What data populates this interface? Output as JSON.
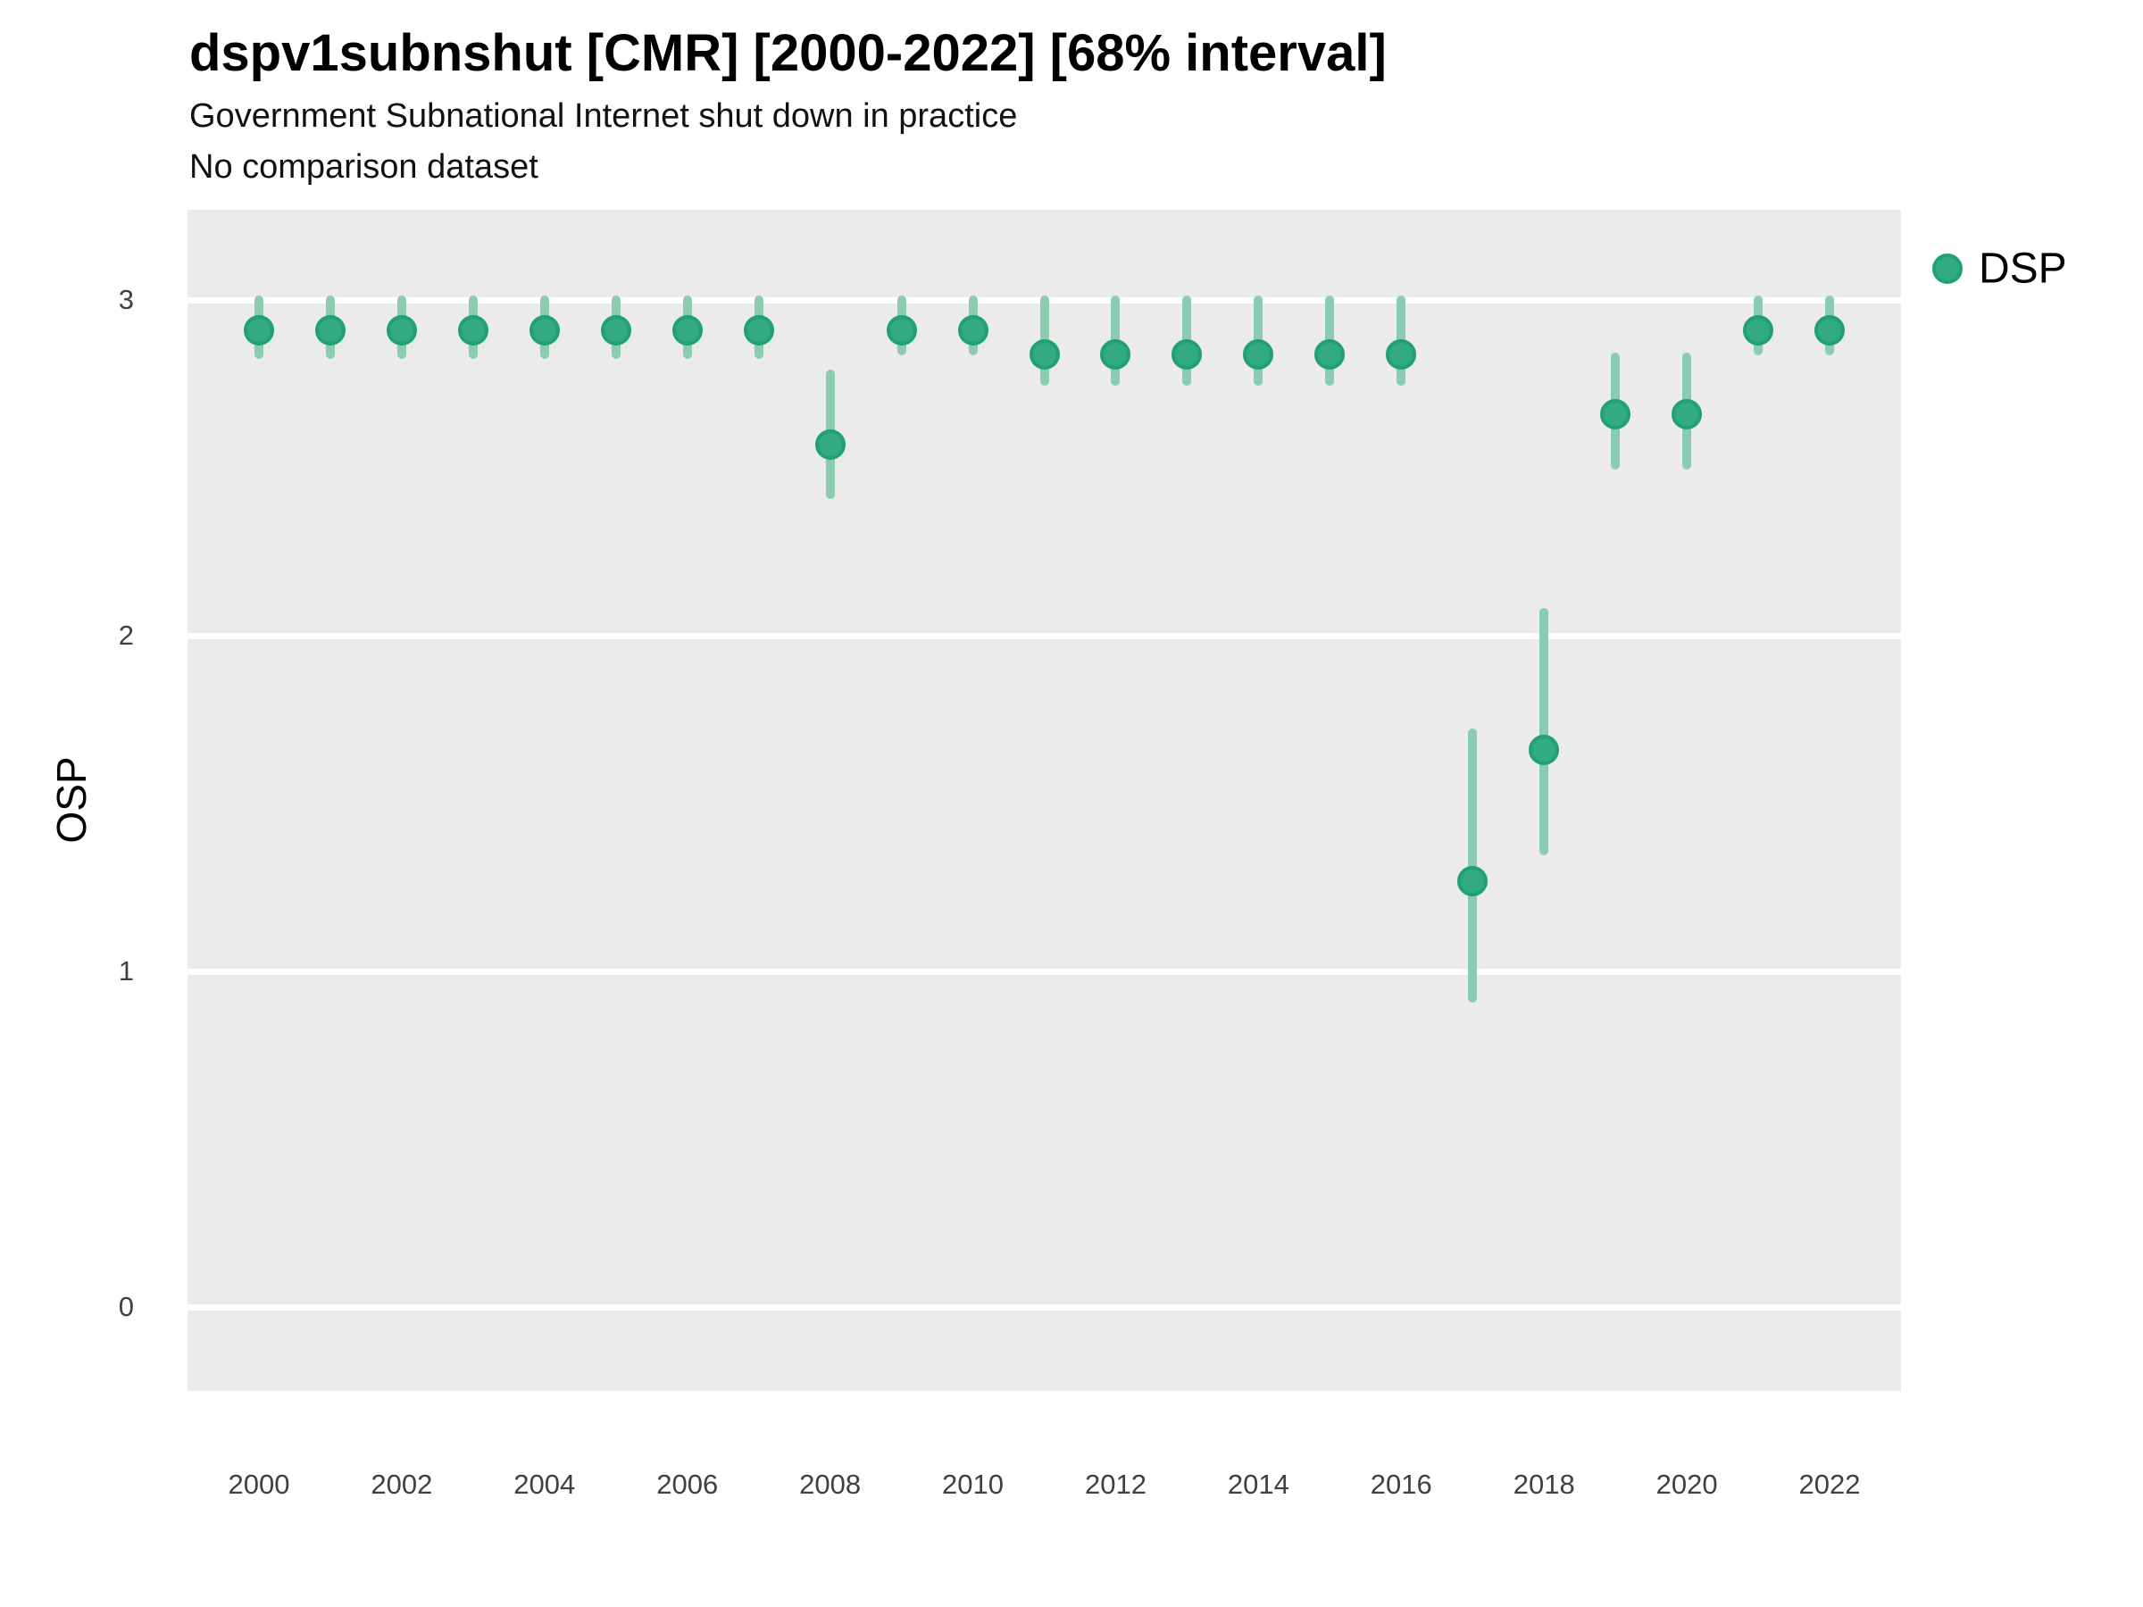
{
  "header": {
    "title": "dspv1subnshut [CMR] [2000-2022] [68% interval]",
    "subtitle": "Government Subnational Internet shut down in practice",
    "note": "No comparison dataset"
  },
  "axes": {
    "y_title": "OSP",
    "y_tick_labels": [
      "3",
      "2",
      "1",
      "0"
    ],
    "x_tick_labels": [
      "2000",
      "2002",
      "2004",
      "2006",
      "2008",
      "2010",
      "2012",
      "2014",
      "2016",
      "2018",
      "2020",
      "2022"
    ]
  },
  "legend": {
    "label": "DSP",
    "position": "right-top"
  },
  "colors": {
    "point_fill": "#33ab81",
    "point_stroke": "#1fa173",
    "interval_bar": "#8bccb1",
    "panel_background": "#EBEBEB",
    "gridline": "#ffffff"
  },
  "chart_data": {
    "type": "scatter",
    "marker": "pointrange",
    "title": "dspv1subnshut [CMR] [2000-2022] [68% interval]",
    "subtitle": "Government Subnational Internet shut down in practice",
    "note": "No comparison dataset",
    "xlabel": "",
    "ylabel": "OSP",
    "x_domain": [
      1999,
      2023
    ],
    "y_domain": [
      -0.25,
      3.27
    ],
    "y_gridlines": [
      3,
      2,
      1,
      0
    ],
    "x_tick_years": [
      2000,
      2002,
      2004,
      2006,
      2008,
      2010,
      2012,
      2014,
      2016,
      2018,
      2020,
      2022
    ],
    "grid": "horizontal-major-only",
    "legend_position": "right-top",
    "series": [
      {
        "name": "DSP",
        "points": [
          {
            "year": 2000,
            "est": 2.91,
            "lo": 2.84,
            "hi": 3.0
          },
          {
            "year": 2001,
            "est": 2.91,
            "lo": 2.84,
            "hi": 3.0
          },
          {
            "year": 2002,
            "est": 2.91,
            "lo": 2.84,
            "hi": 3.0
          },
          {
            "year": 2003,
            "est": 2.91,
            "lo": 2.84,
            "hi": 3.0
          },
          {
            "year": 2004,
            "est": 2.91,
            "lo": 2.84,
            "hi": 3.0
          },
          {
            "year": 2005,
            "est": 2.91,
            "lo": 2.84,
            "hi": 3.0
          },
          {
            "year": 2006,
            "est": 2.91,
            "lo": 2.84,
            "hi": 3.0
          },
          {
            "year": 2007,
            "est": 2.91,
            "lo": 2.84,
            "hi": 3.0
          },
          {
            "year": 2008,
            "est": 2.57,
            "lo": 2.42,
            "hi": 2.78
          },
          {
            "year": 2009,
            "est": 2.91,
            "lo": 2.85,
            "hi": 3.0
          },
          {
            "year": 2010,
            "est": 2.91,
            "lo": 2.85,
            "hi": 3.0
          },
          {
            "year": 2011,
            "est": 2.84,
            "lo": 2.76,
            "hi": 3.0
          },
          {
            "year": 2012,
            "est": 2.84,
            "lo": 2.76,
            "hi": 3.0
          },
          {
            "year": 2013,
            "est": 2.84,
            "lo": 2.76,
            "hi": 3.0
          },
          {
            "year": 2014,
            "est": 2.84,
            "lo": 2.76,
            "hi": 3.0
          },
          {
            "year": 2015,
            "est": 2.84,
            "lo": 2.76,
            "hi": 3.0
          },
          {
            "year": 2016,
            "est": 2.84,
            "lo": 2.76,
            "hi": 3.0
          },
          {
            "year": 2017,
            "est": 1.27,
            "lo": 0.92,
            "hi": 1.71
          },
          {
            "year": 2018,
            "est": 1.66,
            "lo": 1.36,
            "hi": 2.07
          },
          {
            "year": 2019,
            "est": 2.66,
            "lo": 2.51,
            "hi": 2.83
          },
          {
            "year": 2020,
            "est": 2.66,
            "lo": 2.51,
            "hi": 2.83
          },
          {
            "year": 2021,
            "est": 2.91,
            "lo": 2.85,
            "hi": 3.0
          },
          {
            "year": 2022,
            "est": 2.91,
            "lo": 2.85,
            "hi": 3.0
          }
        ]
      }
    ]
  }
}
